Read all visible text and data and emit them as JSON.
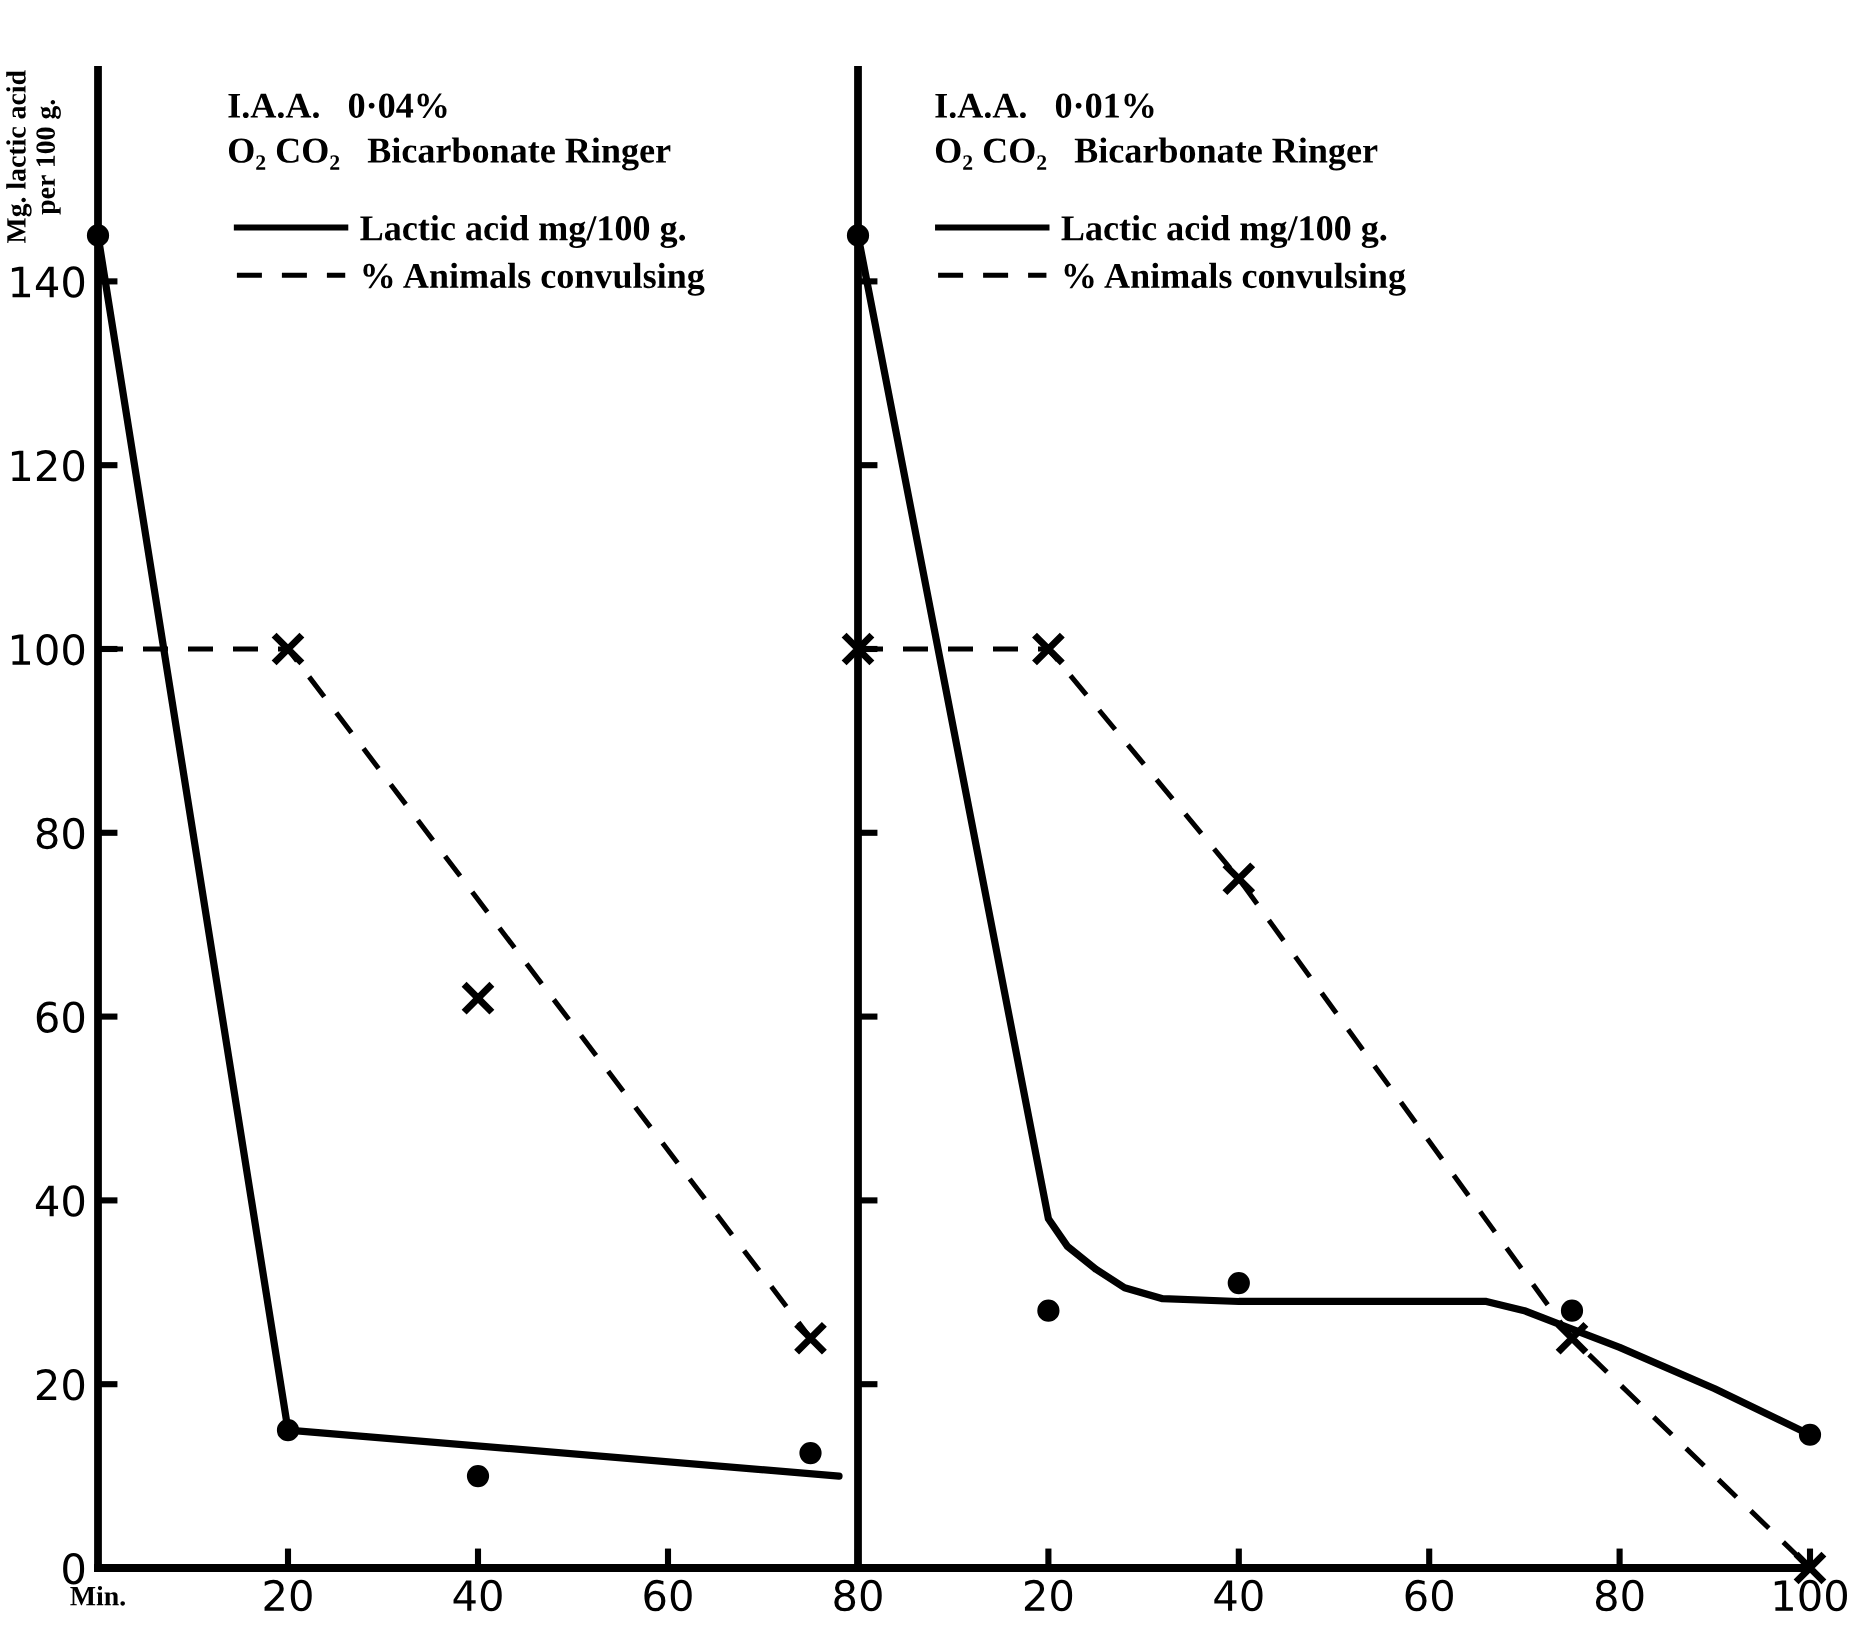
{
  "chart_data": [
    {
      "type": "line",
      "annotations": [
        "I.A.A.   0·04%",
        "O₂ CO₂   Bicarbonate Ringer"
      ],
      "xlabel": "Min.",
      "ylabel": "Mg. lactic acid\nper 100 g.",
      "xlim": [
        0,
        80
      ],
      "xticks": [
        {
          "value": 0,
          "label": null
        },
        20,
        40,
        60,
        80
      ],
      "ylim": [
        0,
        163
      ],
      "yticks": [
        0,
        20,
        40,
        60,
        80,
        100,
        120,
        140
      ],
      "legend": "top",
      "grid": false,
      "line_style": "solid",
      "marker": "none",
      "series": [
        {
          "name": "Lactic acid mg/100 g.",
          "color": "#000000",
          "x": [
            0,
            20,
            78
          ],
          "values": [
            145,
            15,
            10
          ]
        },
        {
          "type": "scatter",
          "marker": "circle",
          "color": "#000000",
          "x": [
            0,
            20,
            40,
            75
          ],
          "values": [
            145,
            15,
            10,
            12.5
          ]
        },
        {
          "name": "% Animals convulsing",
          "color": "#000000",
          "line_style": "dashed",
          "x": [
            0,
            20,
            40,
            75
          ],
          "values": [
            100,
            100,
            null,
            25
          ]
        },
        {
          "type": "scatter",
          "marker": "cross",
          "color": "#000000",
          "x": [
            20,
            40,
            75
          ],
          "values": [
            100,
            62,
            25
          ]
        }
      ]
    },
    {
      "type": "line",
      "annotations": [
        "I.A.A.   0·01%",
        "O₂ CO₂   Bicarbonate Ringer"
      ],
      "xlim": [
        0,
        100
      ],
      "xticks": [
        {
          "value": 0,
          "label": null
        },
        20,
        40,
        60,
        80,
        100
      ],
      "ylim": [
        0,
        163
      ],
      "yticks": [
        {
          "value": 0,
          "label": null
        },
        {
          "value": 20,
          "label": null
        },
        {
          "value": 40,
          "label": null
        },
        {
          "value": 60,
          "label": null
        },
        {
          "value": 80,
          "label": null
        },
        {
          "value": 100,
          "label": null
        },
        {
          "value": 120,
          "label": null
        },
        {
          "value": 140,
          "label": null
        }
      ],
      "tick_labels": "x",
      "legend": "top",
      "grid": false,
      "line_style": "solid",
      "marker": "none",
      "series": [
        {
          "name": "Lactic acid mg/100 g.",
          "color": "#000000",
          "x": [
            0,
            20,
            22,
            25,
            28,
            32,
            40,
            50,
            60,
            66,
            70,
            75,
            80,
            90,
            100
          ],
          "values": [
            145,
            38,
            35,
            32.5,
            30.5,
            29.3,
            29,
            29,
            29,
            29,
            28,
            26,
            24,
            19.5,
            14.5
          ]
        },
        {
          "type": "scatter",
          "marker": "circle",
          "color": "#000000",
          "x": [
            0,
            20,
            40,
            75,
            100
          ],
          "values": [
            145,
            28,
            31,
            28,
            14.5
          ]
        },
        {
          "name": "% Animals convulsing",
          "color": "#000000",
          "line_style": "dashed",
          "x": [
            0,
            20,
            40,
            75,
            100
          ],
          "values": [
            100,
            100,
            75,
            25,
            0
          ]
        },
        {
          "type": "scatter",
          "marker": "cross",
          "color": "#000000",
          "x": [
            0,
            20,
            40,
            75,
            100
          ],
          "values": [
            100,
            100,
            75,
            25,
            0
          ]
        }
      ]
    }
  ]
}
